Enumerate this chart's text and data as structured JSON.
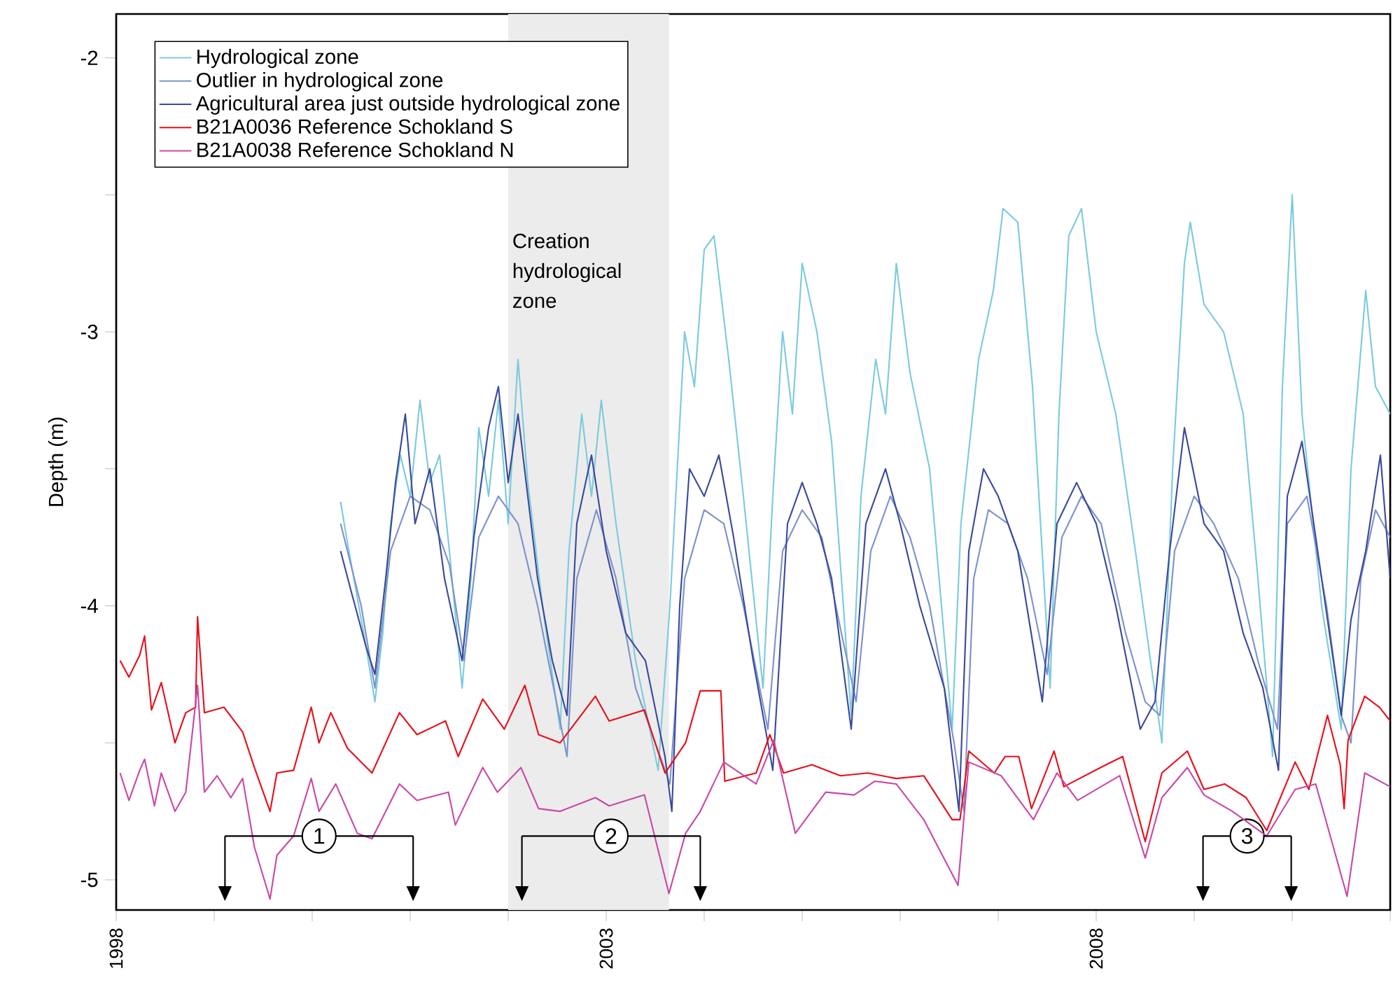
{
  "chart_data": {
    "type": "line",
    "ylabel": "Depth (m)",
    "legend": "top left",
    "line_style": "solid",
    "xlim": [
      1998,
      2011
    ],
    "ylim": [
      -5.11,
      -1.84
    ],
    "xticks": [
      1998,
      {
        "value": 1999,
        "label": null
      },
      {
        "value": 2000,
        "label": null
      },
      {
        "value": 2001,
        "label": null
      },
      {
        "value": 2002,
        "label": null
      },
      2003,
      {
        "value": 2004,
        "label": null
      },
      {
        "value": 2005,
        "label": null
      },
      {
        "value": 2006,
        "label": null
      },
      {
        "value": 2007,
        "label": null
      },
      2008,
      {
        "value": 2009,
        "label": null
      },
      {
        "value": 2010,
        "label": null
      },
      {
        "value": 2011,
        "label": null
      }
    ],
    "yticks": [
      -2,
      {
        "value": -2.5,
        "label": null
      },
      -3,
      {
        "value": -3.5,
        "label": null
      },
      -4,
      {
        "value": -4.5,
        "label": null
      },
      -5
    ],
    "bands": [
      {
        "axis": "x",
        "from": 2002.0,
        "to": 2003.64,
        "label": "Creation hydrological zone",
        "color": "#ececec"
      }
    ],
    "annotations": [
      {
        "text": "1",
        "x": 2000.07,
        "y": -4.84
      },
      {
        "text": "2",
        "x": 2003.05,
        "y": -4.84
      },
      {
        "text": "3",
        "x": 2009.54,
        "y": -4.84
      }
    ],
    "series": [
      {
        "name": "Hydrological zone",
        "color": "#7ccbdc",
        "x": [
          2000.29,
          2000.35,
          2000.45,
          2000.55,
          2000.64,
          2000.72,
          2000.8,
          2000.9,
          2001.0,
          2001.1,
          2001.2,
          2001.3,
          2001.4,
          2001.53,
          2001.62,
          2001.7,
          2001.8,
          2001.9,
          2002.0,
          2002.1,
          2002.2,
          2002.35,
          2002.53,
          2002.62,
          2002.75,
          2002.85,
          2002.95,
          2003.1,
          2003.3,
          2003.53,
          2003.65,
          2003.8,
          2003.9,
          2004.0,
          2004.1,
          2004.25,
          2004.4,
          2004.6,
          2004.7,
          2004.8,
          2004.9,
          2005.0,
          2005.15,
          2005.3,
          2005.5,
          2005.6,
          2005.75,
          2005.85,
          2005.96,
          2006.1,
          2006.3,
          2006.53,
          2006.62,
          2006.8,
          2006.95,
          2007.05,
          2007.2,
          2007.35,
          2007.53,
          2007.62,
          2007.72,
          2007.85,
          2008.0,
          2008.2,
          2008.4,
          2008.67,
          2008.78,
          2008.9,
          2008.96,
          2009.1,
          2009.3,
          2009.5,
          2009.65,
          2009.8,
          2009.9,
          2010.0,
          2010.1,
          2010.3,
          2010.5,
          2010.6,
          2010.75,
          2010.85,
          2011.0
        ],
        "values": [
          -3.62,
          -3.75,
          -3.95,
          -4.15,
          -4.35,
          -4.1,
          -3.7,
          -3.45,
          -3.6,
          -3.25,
          -3.55,
          -3.45,
          -3.8,
          -4.3,
          -3.9,
          -3.35,
          -3.6,
          -3.25,
          -3.7,
          -3.1,
          -3.55,
          -4.0,
          -4.45,
          -3.8,
          -3.3,
          -3.6,
          -3.25,
          -3.7,
          -4.2,
          -4.6,
          -4.0,
          -3.0,
          -3.2,
          -2.7,
          -2.65,
          -3.1,
          -3.6,
          -4.3,
          -3.6,
          -3.0,
          -3.3,
          -2.75,
          -3.0,
          -3.4,
          -4.4,
          -3.6,
          -3.1,
          -3.3,
          -2.75,
          -3.15,
          -3.5,
          -4.45,
          -3.7,
          -3.1,
          -2.85,
          -2.55,
          -2.6,
          -3.2,
          -4.3,
          -3.3,
          -2.65,
          -2.55,
          -3.0,
          -3.3,
          -3.8,
          -4.5,
          -3.5,
          -2.75,
          -2.6,
          -2.9,
          -3.0,
          -3.3,
          -3.9,
          -4.55,
          -3.2,
          -2.5,
          -3.3,
          -4.0,
          -4.45,
          -3.5,
          -2.85,
          -3.2,
          -3.3
        ]
      },
      {
        "name": "Outlier in hydrological zone",
        "color": "#7b93cc",
        "x": [
          2000.29,
          2000.5,
          2000.64,
          2000.8,
          2001.0,
          2001.2,
          2001.4,
          2001.55,
          2001.7,
          2001.9,
          2002.1,
          2002.3,
          2002.6,
          2002.7,
          2002.9,
          2003.1,
          2003.3,
          2003.5,
          2003.65,
          2003.8,
          2004.0,
          2004.2,
          2004.4,
          2004.65,
          2004.8,
          2005.0,
          2005.2,
          2005.4,
          2005.55,
          2005.7,
          2005.9,
          2006.1,
          2006.3,
          2006.55,
          2006.65,
          2006.75,
          2006.9,
          2007.1,
          2007.3,
          2007.5,
          2007.65,
          2007.85,
          2008.05,
          2008.3,
          2008.5,
          2008.65,
          2008.8,
          2009.0,
          2009.2,
          2009.45,
          2009.65,
          2009.85,
          2009.95,
          2010.15,
          2010.35,
          2010.5,
          2010.6,
          2010.7,
          2010.85,
          2011.0
        ],
        "values": [
          -3.7,
          -4.0,
          -4.3,
          -3.8,
          -3.6,
          -3.65,
          -3.85,
          -4.2,
          -3.75,
          -3.6,
          -3.7,
          -4.0,
          -4.55,
          -3.9,
          -3.65,
          -3.9,
          -4.3,
          -4.5,
          -4.65,
          -3.9,
          -3.65,
          -3.7,
          -4.0,
          -4.45,
          -3.8,
          -3.65,
          -3.75,
          -4.1,
          -4.35,
          -3.8,
          -3.6,
          -3.75,
          -4.0,
          -4.5,
          -4.75,
          -3.9,
          -3.65,
          -3.7,
          -3.9,
          -4.25,
          -3.75,
          -3.6,
          -3.7,
          -4.1,
          -4.35,
          -4.4,
          -3.8,
          -3.6,
          -3.7,
          -3.9,
          -4.2,
          -4.45,
          -3.7,
          -3.6,
          -4.0,
          -4.4,
          -4.5,
          -3.9,
          -3.65,
          -3.75
        ]
      },
      {
        "name": "Agricultural area just outside hydrological zone",
        "color": "#3b4a9c",
        "x": [
          2000.29,
          2000.4,
          2000.55,
          2000.64,
          2000.75,
          2000.85,
          2000.95,
          2001.05,
          2001.2,
          2001.35,
          2001.53,
          2001.65,
          2001.8,
          2001.9,
          2002.0,
          2002.1,
          2002.3,
          2002.45,
          2002.6,
          2002.7,
          2002.85,
          2003.0,
          2003.2,
          2003.4,
          2003.6,
          2003.67,
          2003.75,
          2003.85,
          2004.0,
          2004.15,
          2004.3,
          2004.5,
          2004.7,
          2004.85,
          2005.0,
          2005.15,
          2005.3,
          2005.5,
          2005.65,
          2005.85,
          2006.0,
          2006.2,
          2006.45,
          2006.6,
          2006.7,
          2006.85,
          2007.0,
          2007.2,
          2007.45,
          2007.6,
          2007.8,
          2008.0,
          2008.2,
          2008.45,
          2008.6,
          2008.75,
          2008.9,
          2009.1,
          2009.3,
          2009.5,
          2009.7,
          2009.86,
          2009.95,
          2010.1,
          2010.3,
          2010.5,
          2010.6,
          2010.75,
          2010.9,
          2011.0
        ],
        "values": [
          -3.8,
          -3.95,
          -4.15,
          -4.25,
          -3.9,
          -3.55,
          -3.3,
          -3.7,
          -3.5,
          -3.9,
          -4.2,
          -3.75,
          -3.35,
          -3.2,
          -3.55,
          -3.3,
          -3.9,
          -4.2,
          -4.4,
          -3.7,
          -3.45,
          -3.8,
          -4.1,
          -4.2,
          -4.55,
          -4.75,
          -4.0,
          -3.5,
          -3.6,
          -3.45,
          -3.75,
          -4.2,
          -4.6,
          -3.7,
          -3.55,
          -3.7,
          -3.9,
          -4.45,
          -3.7,
          -3.5,
          -3.7,
          -4.0,
          -4.3,
          -4.75,
          -3.8,
          -3.5,
          -3.6,
          -3.8,
          -4.35,
          -3.7,
          -3.55,
          -3.7,
          -4.0,
          -4.45,
          -4.35,
          -3.8,
          -3.35,
          -3.7,
          -3.8,
          -4.1,
          -4.3,
          -4.6,
          -3.6,
          -3.4,
          -3.9,
          -4.4,
          -4.05,
          -3.8,
          -3.45,
          -3.9
        ]
      },
      {
        "name": "B21A0036 Reference Schokland S",
        "color": "#e8101a",
        "x": [
          1998.04,
          1998.13,
          1998.24,
          1998.29,
          1998.36,
          1998.46,
          1998.6,
          1998.71,
          1998.81,
          1998.83,
          1998.9,
          1999.1,
          1999.29,
          1999.41,
          1999.57,
          1999.64,
          1999.81,
          1999.99,
          2000.07,
          2000.19,
          2000.36,
          2000.61,
          2000.89,
          2001.07,
          2001.36,
          2001.49,
          2001.74,
          2001.96,
          2002.17,
          2002.31,
          2002.53,
          2002.89,
          2003.03,
          2003.39,
          2003.6,
          2003.81,
          2003.96,
          2004.17,
          2004.21,
          2004.53,
          2004.67,
          2004.81,
          2005.1,
          2005.39,
          2005.67,
          2005.96,
          2006.24,
          2006.53,
          2006.61,
          2006.7,
          2006.96,
          2007.07,
          2007.21,
          2007.34,
          2007.57,
          2007.67,
          2008.1,
          2008.27,
          2008.5,
          2008.67,
          2008.93,
          2009.1,
          2009.31,
          2009.53,
          2009.74,
          2010.03,
          2010.17,
          2010.36,
          2010.49,
          2010.53,
          2010.57,
          2010.74,
          2010.89,
          2011.0
        ],
        "values": [
          -4.2,
          -4.26,
          -4.18,
          -4.11,
          -4.38,
          -4.28,
          -4.5,
          -4.39,
          -4.37,
          -4.04,
          -4.39,
          -4.37,
          -4.46,
          -4.59,
          -4.75,
          -4.61,
          -4.6,
          -4.37,
          -4.5,
          -4.39,
          -4.52,
          -4.61,
          -4.39,
          -4.47,
          -4.42,
          -4.55,
          -4.34,
          -4.45,
          -4.29,
          -4.47,
          -4.5,
          -4.33,
          -4.42,
          -4.38,
          -4.61,
          -4.5,
          -4.31,
          -4.31,
          -4.64,
          -4.61,
          -4.47,
          -4.61,
          -4.58,
          -4.62,
          -4.61,
          -4.63,
          -4.62,
          -4.78,
          -4.78,
          -4.53,
          -4.61,
          -4.55,
          -4.55,
          -4.74,
          -4.53,
          -4.66,
          -4.58,
          -4.55,
          -4.86,
          -4.61,
          -4.53,
          -4.67,
          -4.65,
          -4.7,
          -4.82,
          -4.57,
          -4.67,
          -4.4,
          -4.58,
          -4.74,
          -4.49,
          -4.33,
          -4.37,
          -4.42
        ]
      },
      {
        "name": "B21A0038 Reference Schokland N",
        "color": "#c84aa5",
        "x": [
          1998.04,
          1998.13,
          1998.24,
          1998.29,
          1998.39,
          1998.46,
          1998.6,
          1998.71,
          1998.83,
          1998.9,
          1999.03,
          1999.17,
          1999.29,
          1999.41,
          1999.57,
          1999.64,
          1999.81,
          1999.99,
          2000.07,
          2000.24,
          2000.46,
          2000.61,
          2000.89,
          2001.07,
          2001.39,
          2001.46,
          2001.74,
          2001.89,
          2002.13,
          2002.31,
          2002.53,
          2002.89,
          2003.03,
          2003.39,
          2003.64,
          2003.81,
          2003.96,
          2004.2,
          2004.53,
          2004.71,
          2004.93,
          2005.24,
          2005.53,
          2005.74,
          2005.96,
          2006.24,
          2006.59,
          2006.7,
          2007.03,
          2007.36,
          2007.6,
          2007.81,
          2008.24,
          2008.5,
          2008.67,
          2008.93,
          2009.1,
          2009.39,
          2009.74,
          2010.03,
          2010.24,
          2010.56,
          2010.74,
          2011.0
        ],
        "values": [
          -4.61,
          -4.71,
          -4.6,
          -4.56,
          -4.73,
          -4.61,
          -4.75,
          -4.68,
          -4.29,
          -4.68,
          -4.62,
          -4.7,
          -4.63,
          -4.88,
          -5.07,
          -4.91,
          -4.84,
          -4.63,
          -4.75,
          -4.65,
          -4.83,
          -4.85,
          -4.65,
          -4.71,
          -4.68,
          -4.8,
          -4.59,
          -4.68,
          -4.59,
          -4.74,
          -4.75,
          -4.7,
          -4.73,
          -4.69,
          -5.05,
          -4.83,
          -4.75,
          -4.57,
          -4.65,
          -4.49,
          -4.83,
          -4.68,
          -4.69,
          -4.64,
          -4.65,
          -4.78,
          -5.02,
          -4.57,
          -4.62,
          -4.78,
          -4.61,
          -4.71,
          -4.62,
          -4.92,
          -4.7,
          -4.59,
          -4.69,
          -4.75,
          -4.84,
          -4.67,
          -4.65,
          -5.06,
          -4.61,
          -4.66
        ]
      }
    ]
  }
}
